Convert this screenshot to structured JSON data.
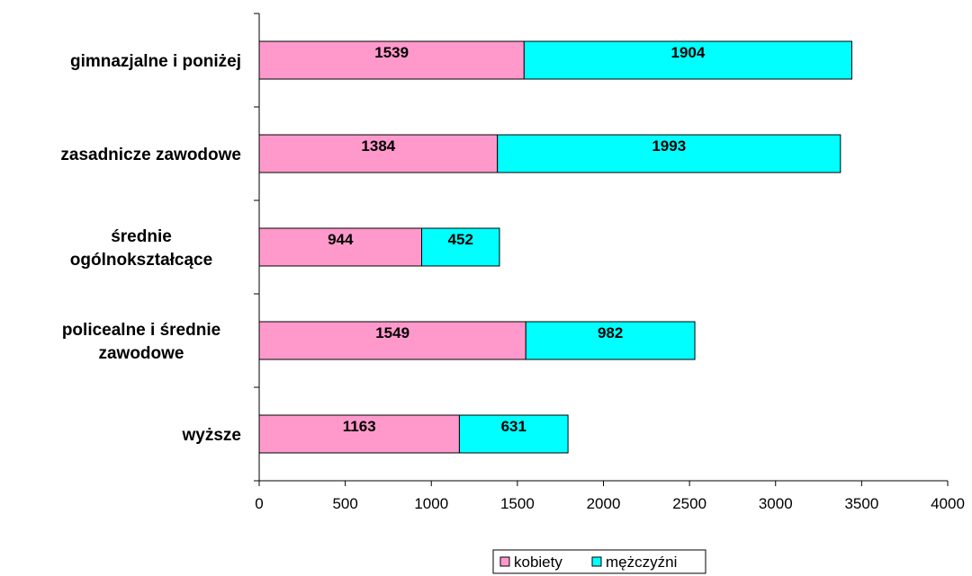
{
  "chart_data": {
    "type": "bar",
    "orientation": "horizontal",
    "stacked": true,
    "categories": [
      [
        "gimnazjalne i poniżej"
      ],
      [
        "zasadnicze zawodowe"
      ],
      [
        "średnie",
        "ogólnokształcące"
      ],
      [
        "policealne i średnie",
        "zawodowe"
      ],
      [
        "wyższe"
      ]
    ],
    "series": [
      {
        "name": "kobiety",
        "color": "#FF99CC",
        "values": [
          1539,
          1384,
          944,
          1549,
          1163
        ]
      },
      {
        "name": "mężczyźni",
        "color": "#00FFFF",
        "values": [
          1904,
          1993,
          452,
          982,
          631
        ]
      }
    ],
    "xlim": [
      0,
      4000
    ],
    "xticks": [
      0,
      500,
      1000,
      1500,
      2000,
      2500,
      3000,
      3500,
      4000
    ],
    "grid": false,
    "legend_position": "bottom"
  }
}
